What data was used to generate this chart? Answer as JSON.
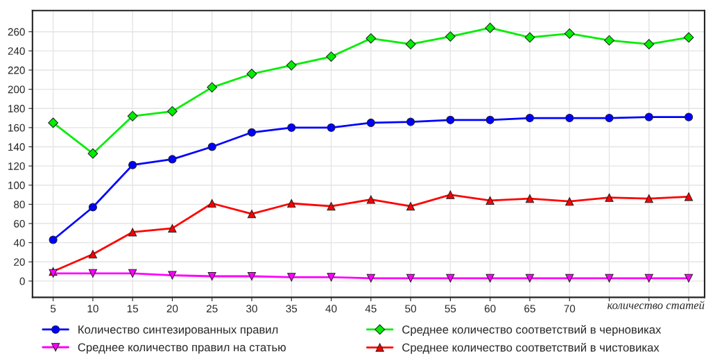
{
  "chart_data": {
    "type": "line",
    "xlabel": "количество статей",
    "categories": [
      "5",
      "10",
      "15",
      "20",
      "25",
      "30",
      "35",
      "40",
      "45",
      "50",
      "55",
      "60",
      "65",
      "70",
      null,
      null,
      null
    ],
    "series": [
      {
        "name": "Количество синтезированных правил",
        "color": "#0000ff",
        "marker": "circle",
        "values": [
          43,
          77,
          121,
          127,
          140,
          155,
          160,
          160,
          165,
          166,
          168,
          168,
          170,
          170,
          170,
          171,
          171
        ]
      },
      {
        "name": "Среднее количество правил на статью",
        "color": "#ff00ff",
        "marker": "triangle_down",
        "values": [
          8,
          8,
          8,
          6,
          5,
          5,
          4,
          4,
          3,
          3,
          3,
          3,
          3,
          3,
          3,
          3,
          3
        ]
      },
      {
        "name": "Среднее количество соответствий в черновиках",
        "color": "#00ee00",
        "marker": "diamond",
        "values": [
          165,
          133,
          172,
          177,
          202,
          216,
          225,
          234,
          253,
          247,
          255,
          264,
          254,
          258,
          251,
          247,
          254
        ]
      },
      {
        "name": "Среднее количество соответствий в чистовиках",
        "color": "#ff0000",
        "marker": "triangle",
        "values": [
          10,
          28,
          51,
          55,
          81,
          70,
          81,
          78,
          85,
          78,
          90,
          84,
          86,
          83,
          87,
          86,
          88
        ]
      }
    ],
    "ylim": [
      -17,
      282
    ],
    "yticks": [
      0,
      20,
      40,
      60,
      80,
      100,
      120,
      140,
      160,
      180,
      200,
      220,
      240,
      260
    ],
    "grid": true,
    "legend": "bottom",
    "line_style": "solid"
  }
}
